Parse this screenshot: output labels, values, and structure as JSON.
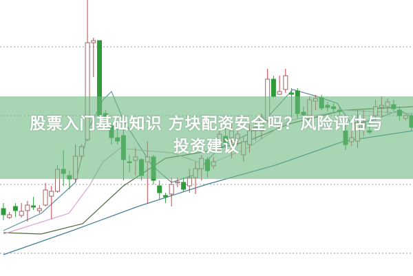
{
  "title_line1": "股票入门基础知识 方块配资安全吗？风险评估与",
  "title_line2": "投资建议",
  "colors": {
    "up": "#c8404a",
    "down": "#2e9a3a",
    "grid": "#9a9a9a",
    "banner": "#6eb982"
  },
  "chart_data": {
    "type": "candlestick",
    "title": "",
    "xlabel": "",
    "ylabel": "",
    "ylim": [
      0,
      40
    ],
    "grid": true,
    "legend": "none",
    "gridlines": [
      33.2,
      23.2,
      13.2,
      3.2
    ],
    "candles": [
      [
        9.7,
        10.5,
        8.0,
        8.8
      ],
      [
        8.4,
        9.2,
        8.2,
        8.8
      ],
      [
        10.0,
        10.5,
        8.5,
        9.4
      ],
      [
        8.7,
        10.5,
        8.4,
        9.3
      ],
      [
        9.4,
        10.8,
        7.8,
        10.2
      ],
      [
        10.1,
        11.4,
        9.5,
        9.9
      ],
      [
        9.4,
        10.2,
        9.0,
        9.7
      ],
      [
        10.2,
        13.4,
        10.0,
        12.4
      ],
      [
        11.5,
        13.0,
        8.2,
        12.2
      ],
      [
        12.2,
        16.0,
        12.0,
        15.4
      ],
      [
        15.4,
        18.2,
        13.0,
        14.8
      ],
      [
        14.5,
        15.2,
        12.5,
        14.0
      ],
      [
        14.0,
        19.0,
        13.5,
        17.3
      ],
      [
        17.3,
        19.0,
        16.8,
        18.7
      ],
      [
        19.7,
        40.0,
        19.5,
        33.8
      ],
      [
        33.8,
        34.5,
        28.8,
        34.1
      ],
      [
        34.1,
        34.1,
        23.0,
        23.2
      ],
      [
        23.5,
        24.0,
        21.5,
        22.0
      ],
      [
        21.7,
        22.2,
        19.0,
        20.0
      ],
      [
        20.0,
        21.5,
        19.0,
        19.5
      ],
      [
        20.3,
        22.0,
        13.8,
        16.8
      ],
      [
        16.5,
        17.5,
        15.0,
        16.4
      ],
      [
        16.7,
        18.5,
        14.5,
        17.2
      ],
      [
        16.8,
        17.0,
        13.8,
        14.5
      ],
      [
        16.5,
        19.5,
        10.5,
        17.2
      ],
      [
        17.2,
        17.5,
        13.2,
        13.8
      ],
      [
        13.0,
        13.8,
        11.0,
        12.0
      ],
      [
        11.6,
        12.0,
        10.5,
        11.4
      ],
      [
        11.8,
        14.2,
        10.0,
        13.2
      ],
      [
        13.5,
        14.2,
        12.8,
        13.6
      ],
      [
        13.5,
        14.2,
        12.2,
        12.5
      ],
      [
        13.0,
        15.5,
        12.0,
        14.2
      ],
      [
        14.2,
        16.5,
        11.8,
        15.5
      ],
      [
        15.5,
        17.5,
        13.8,
        17.0
      ],
      [
        16.8,
        17.2,
        14.2,
        15.2
      ],
      [
        15.9,
        17.2,
        15.5,
        16.5
      ],
      [
        18.8,
        21.0,
        17.8,
        20.5
      ],
      [
        20.2,
        21.5,
        18.5,
        19.0
      ],
      [
        20.0,
        22.0,
        17.0,
        21.0
      ],
      [
        19.8,
        21.0,
        18.8,
        20.5
      ],
      [
        17.5,
        20.2,
        16.5,
        19.4
      ],
      [
        19.0,
        22.0,
        17.8,
        21.0
      ],
      [
        21.0,
        22.2,
        19.5,
        21.5
      ],
      [
        21.0,
        23.5,
        19.8,
        23.0
      ],
      [
        22.5,
        30.0,
        22.2,
        28.5
      ],
      [
        28.5,
        29.0,
        25.8,
        26.0
      ],
      [
        26.3,
        29.0,
        26.2,
        26.7
      ],
      [
        27.0,
        30.0,
        26.5,
        29.0
      ],
      [
        26.5,
        27.2,
        23.0,
        26.3
      ],
      [
        26.8,
        27.2,
        22.8,
        23.5
      ],
      [
        23.7,
        24.5,
        22.8,
        23.3
      ],
      [
        23.2,
        26.0,
        23.0,
        25.5
      ],
      [
        25.3,
        26.2,
        24.0,
        25.7
      ],
      [
        25.8,
        26.2,
        24.0,
        24.3
      ],
      [
        24.7,
        25.2,
        23.8,
        24.4
      ],
      [
        24.5,
        25.0,
        23.5,
        24.2
      ],
      [
        24.0,
        24.5,
        23.0,
        23.8
      ],
      [
        21.0,
        22.2,
        18.2,
        19.0
      ],
      [
        19.4,
        21.0,
        18.8,
        20.0
      ],
      [
        19.5,
        24.0,
        18.5,
        22.2
      ],
      [
        21.5,
        24.0,
        20.2,
        22.2
      ],
      [
        21.0,
        22.8,
        20.5,
        20.8
      ],
      [
        23.2,
        25.5,
        22.5,
        24.5
      ],
      [
        24.4,
        26.0,
        23.0,
        24.7
      ],
      [
        24.5,
        25.7,
        23.5,
        25.2
      ],
      [
        24.8,
        25.5,
        23.8,
        24.2
      ],
      [
        24.0,
        24.5,
        22.5,
        23.2
      ],
      [
        22.8,
        23.5,
        22.5,
        23.2
      ],
      [
        23.2,
        23.5,
        21.0,
        21.5
      ]
    ],
    "series": [
      {
        "color": "#5f8f9a",
        "points": [
          [
            0,
            6.5
          ],
          [
            6.3,
            9
          ],
          [
            12,
            13.5
          ],
          [
            14.3,
            21.5
          ],
          [
            16.6,
            25.5
          ],
          [
            18,
            26.7
          ],
          [
            20,
            22.5
          ],
          [
            24.7,
            16
          ],
          [
            28,
            13.5
          ],
          [
            31.5,
            14.5
          ],
          [
            36,
            18.5
          ],
          [
            40.7,
            20.5
          ],
          [
            43,
            22
          ],
          [
            48.2,
            27
          ],
          [
            52.2,
            26
          ],
          [
            55.6,
            25
          ],
          [
            58,
            22
          ],
          [
            61.4,
            22.5
          ],
          [
            66,
            24
          ],
          [
            68.2,
            23
          ]
        ]
      },
      {
        "color": "#4d6b3a",
        "points": [
          [
            0,
            6.2
          ],
          [
            6.3,
            6
          ],
          [
            13.2,
            7.5
          ],
          [
            20,
            13
          ],
          [
            27,
            17
          ],
          [
            33.8,
            18
          ],
          [
            40.7,
            19.5
          ],
          [
            47.6,
            22
          ],
          [
            56.8,
            24
          ],
          [
            68.2,
            24.5
          ]
        ]
      },
      {
        "color": "#e3a0d8",
        "points": [
          [
            0,
            6
          ],
          [
            10.9,
            9
          ],
          [
            14.3,
            13
          ],
          [
            16.6,
            16.5
          ],
          [
            19.5,
            18.5
          ]
        ]
      },
      {
        "color": "#b8b8b8",
        "points": [
          [
            14.3,
            13
          ],
          [
            16.6,
            16.5
          ],
          [
            19.5,
            18.5
          ],
          [
            22.4,
            18.2
          ],
          [
            28.1,
            17.8
          ],
          [
            33.8,
            16
          ],
          [
            40.7,
            18.5
          ],
          [
            47.6,
            22.5
          ],
          [
            56.8,
            24
          ],
          [
            68.2,
            23.5
          ]
        ]
      },
      {
        "color": "#3f7f95",
        "points": [
          [
            0,
            3
          ],
          [
            11.5,
            6.5
          ],
          [
            22.4,
            10
          ],
          [
            33.8,
            13.2
          ],
          [
            45.3,
            16
          ],
          [
            56.8,
            19.5
          ],
          [
            68.2,
            21
          ]
        ]
      }
    ]
  }
}
